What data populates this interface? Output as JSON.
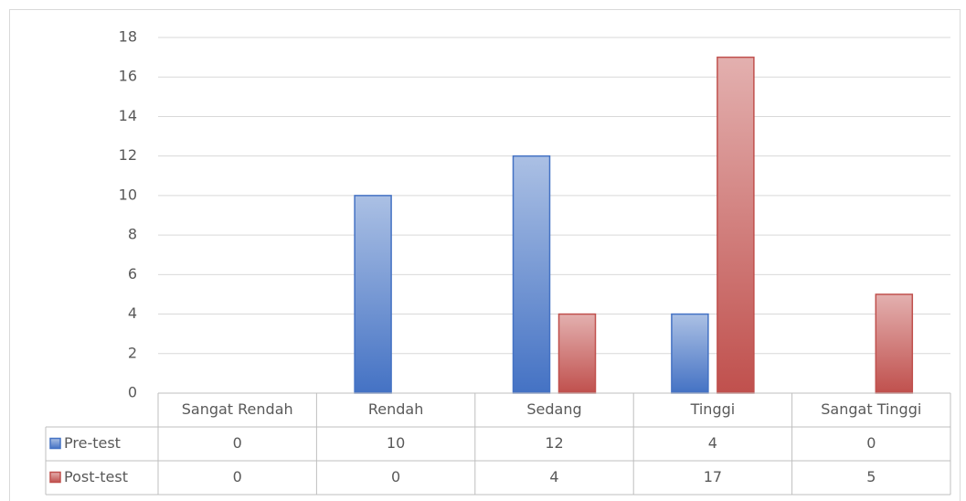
{
  "chart_data": {
    "type": "bar",
    "categories": [
      "Sangat Rendah",
      "Rendah",
      "Sedang",
      "Tinggi",
      "Sangat Tinggi"
    ],
    "series": [
      {
        "name": "Pre-test",
        "color": "#4472c4",
        "values": [
          0,
          10,
          12,
          4,
          0
        ]
      },
      {
        "name": "Post-test",
        "color": "#c0504d",
        "values": [
          0,
          0,
          4,
          17,
          5
        ]
      }
    ],
    "ylim": [
      0,
      18
    ],
    "yticks": [
      0,
      2,
      4,
      6,
      8,
      10,
      12,
      14,
      16,
      18
    ],
    "grid": true,
    "data_table": true
  }
}
